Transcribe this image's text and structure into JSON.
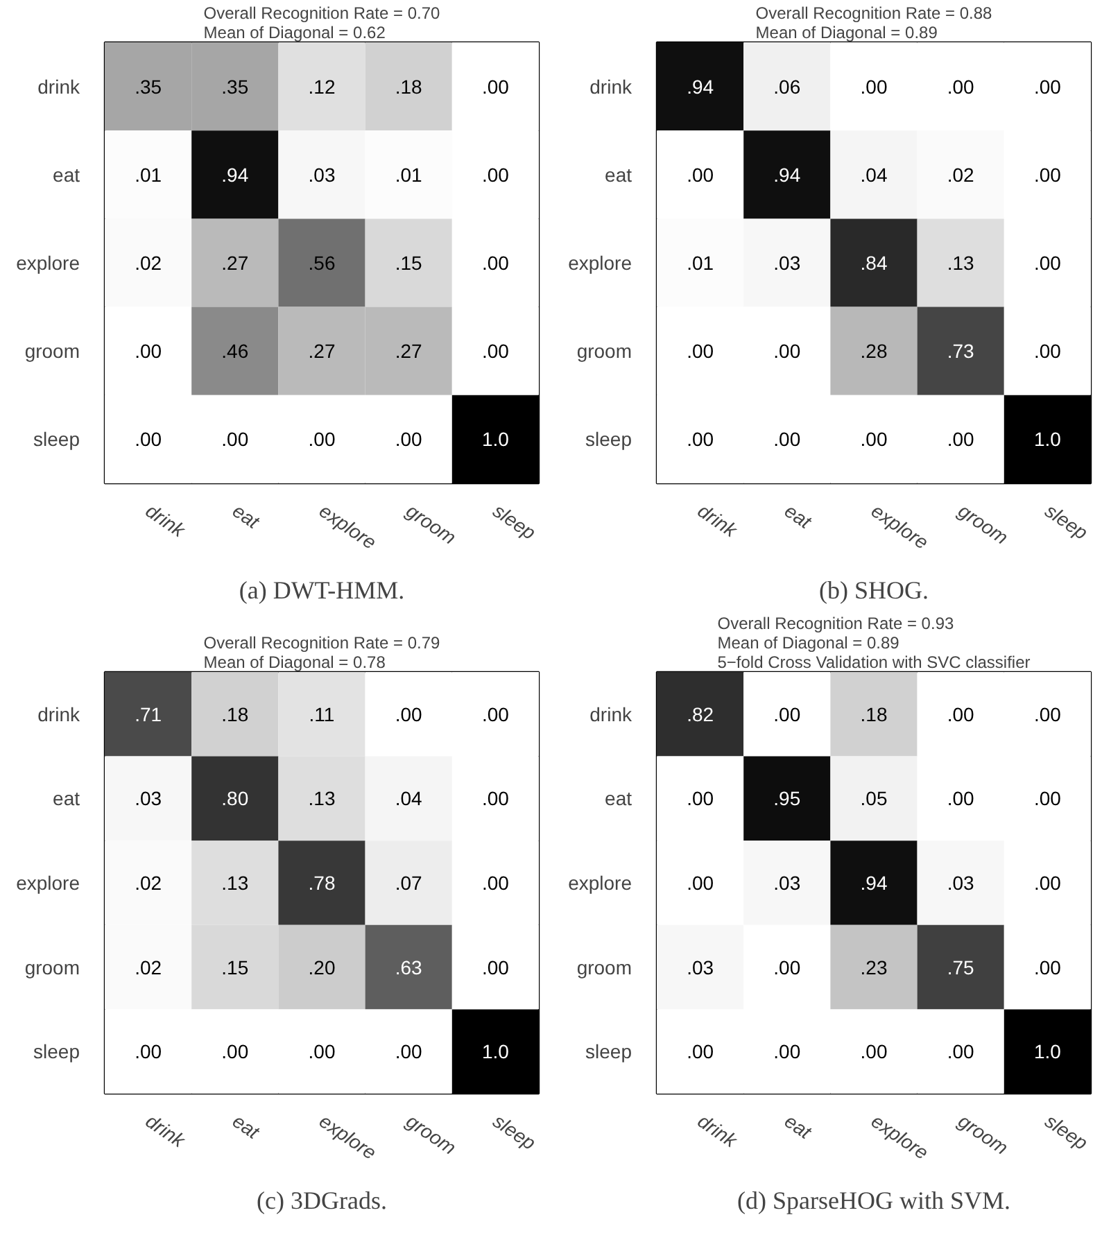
{
  "chart_data": [
    {
      "type": "heatmap",
      "title": "Overall Recognition Rate = 0.70\nMean of Diagonal = 0.62",
      "categories": [
        "drink",
        "eat",
        "explore",
        "groom",
        "sleep"
      ],
      "y_categories": [
        "drink",
        "eat",
        "explore",
        "groom",
        "sleep"
      ],
      "cells": [
        [
          0.35,
          0.35,
          0.12,
          0.18,
          0.0
        ],
        [
          0.01,
          0.94,
          0.03,
          0.01,
          0.0
        ],
        [
          0.02,
          0.27,
          0.56,
          0.15,
          0.0
        ],
        [
          0.0,
          0.46,
          0.27,
          0.27,
          0.0
        ],
        [
          0.0,
          0.0,
          0.0,
          0.0,
          1.0
        ]
      ],
      "cell_labels": [
        [
          ".35",
          ".35",
          ".12",
          ".18",
          ".00"
        ],
        [
          ".01",
          ".94",
          ".03",
          ".01",
          ".00"
        ],
        [
          ".02",
          ".27",
          ".56",
          ".15",
          ".00"
        ],
        [
          ".00",
          ".46",
          ".27",
          ".27",
          ".00"
        ],
        [
          ".00",
          ".00",
          ".00",
          ".00",
          "1.0"
        ]
      ],
      "annotations": [
        "(a) DWT-HMM."
      ]
    },
    {
      "type": "heatmap",
      "title": "Overall Recognition Rate = 0.88\nMean of Diagonal = 0.89",
      "categories": [
        "drink",
        "eat",
        "explore",
        "groom",
        "sleep"
      ],
      "y_categories": [
        "drink",
        "eat",
        "explore",
        "groom",
        "sleep"
      ],
      "cells": [
        [
          0.94,
          0.06,
          0.0,
          0.0,
          0.0
        ],
        [
          0.0,
          0.94,
          0.04,
          0.02,
          0.0
        ],
        [
          0.01,
          0.03,
          0.84,
          0.13,
          0.0
        ],
        [
          0.0,
          0.0,
          0.28,
          0.73,
          0.0
        ],
        [
          0.0,
          0.0,
          0.0,
          0.0,
          1.0
        ]
      ],
      "cell_labels": [
        [
          ".94",
          ".06",
          ".00",
          ".00",
          ".00"
        ],
        [
          ".00",
          ".94",
          ".04",
          ".02",
          ".00"
        ],
        [
          ".01",
          ".03",
          ".84",
          ".13",
          ".00"
        ],
        [
          ".00",
          ".00",
          ".28",
          ".73",
          ".00"
        ],
        [
          ".00",
          ".00",
          ".00",
          ".00",
          "1.0"
        ]
      ],
      "annotations": [
        "(b) SHOG."
      ]
    },
    {
      "type": "heatmap",
      "title": "Overall Recognition Rate = 0.79\nMean of Diagonal = 0.78",
      "categories": [
        "drink",
        "eat",
        "explore",
        "groom",
        "sleep"
      ],
      "y_categories": [
        "drink",
        "eat",
        "explore",
        "groom",
        "sleep"
      ],
      "cells": [
        [
          0.71,
          0.18,
          0.11,
          0.0,
          0.0
        ],
        [
          0.03,
          0.8,
          0.13,
          0.04,
          0.0
        ],
        [
          0.02,
          0.13,
          0.78,
          0.07,
          0.0
        ],
        [
          0.02,
          0.15,
          0.2,
          0.63,
          0.0
        ],
        [
          0.0,
          0.0,
          0.0,
          0.0,
          1.0
        ]
      ],
      "cell_labels": [
        [
          ".71",
          ".18",
          ".11",
          ".00",
          ".00"
        ],
        [
          ".03",
          ".80",
          ".13",
          ".04",
          ".00"
        ],
        [
          ".02",
          ".13",
          ".78",
          ".07",
          ".00"
        ],
        [
          ".02",
          ".15",
          ".20",
          ".63",
          ".00"
        ],
        [
          ".00",
          ".00",
          ".00",
          ".00",
          "1.0"
        ]
      ],
      "annotations": [
        "(c) 3DGrads."
      ]
    },
    {
      "type": "heatmap",
      "title": "Overall Recognition Rate = 0.93\nMean of Diagonal = 0.89\n5−fold Cross Validation with SVC classifier",
      "categories": [
        "drink",
        "eat",
        "explore",
        "groom",
        "sleep"
      ],
      "y_categories": [
        "drink",
        "eat",
        "explore",
        "groom",
        "sleep"
      ],
      "cells": [
        [
          0.82,
          0.0,
          0.18,
          0.0,
          0.0
        ],
        [
          0.0,
          0.95,
          0.05,
          0.0,
          0.0
        ],
        [
          0.0,
          0.03,
          0.94,
          0.03,
          0.0
        ],
        [
          0.03,
          0.0,
          0.23,
          0.75,
          0.0
        ],
        [
          0.0,
          0.0,
          0.0,
          0.0,
          1.0
        ]
      ],
      "cell_labels": [
        [
          ".82",
          ".00",
          ".18",
          ".00",
          ".00"
        ],
        [
          ".00",
          ".95",
          ".05",
          ".00",
          ".00"
        ],
        [
          ".00",
          ".03",
          ".94",
          ".03",
          ".00"
        ],
        [
          ".03",
          ".00",
          ".23",
          ".75",
          ".00"
        ],
        [
          ".00",
          ".00",
          ".00",
          ".00",
          "1.0"
        ]
      ],
      "annotations": [
        "(d) SparseHOG with SVM."
      ]
    }
  ]
}
